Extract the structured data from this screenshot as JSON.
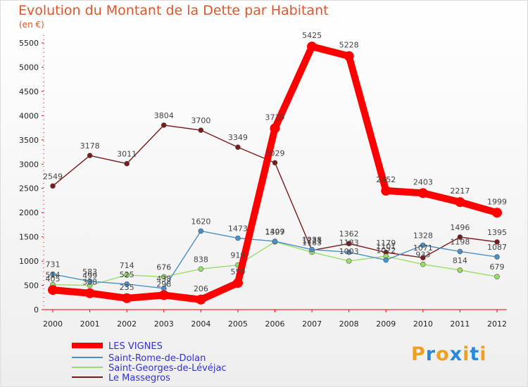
{
  "chart_data": {
    "type": "line",
    "title": "Evolution du Montant de la Dette par Habitant",
    "subtitle": "(en €)",
    "xlabel": "",
    "ylabel": "",
    "x": [
      "2000",
      "2001",
      "2002",
      "2003",
      "2004",
      "2005",
      "2006",
      "2007",
      "2008",
      "2009",
      "2010",
      "2011",
      "2012"
    ],
    "ylim": [
      0,
      5500
    ],
    "yticks": [
      0,
      500,
      1000,
      1500,
      2000,
      2500,
      3000,
      3500,
      4000,
      4500,
      5000,
      5500
    ],
    "grid": false,
    "legend_position": "bottom-left",
    "series": [
      {
        "name": "LES VIGNES",
        "color": "#ff0000",
        "values": [
          405,
          338,
          235,
          298,
          206,
          550,
          3739,
          5425,
          5228,
          2452,
          2403,
          2217,
          1999
        ]
      },
      {
        "name": "Saint-Rome-de-Dolan",
        "color": "#4a90c8",
        "values": [
          731,
          583,
          525,
          438,
          1620,
          1473,
          1409,
          1238,
          1183,
          1022,
          1328,
          1198,
          1087
        ]
      },
      {
        "name": "Saint-Georges-de-Lévéjac",
        "color": "#99dd66",
        "values": [
          514,
          499,
          714,
          676,
          838,
          919,
          1397,
          1183,
          1003,
          1101,
          933,
          814,
          679
        ]
      },
      {
        "name": "Le Massegros",
        "color": "#7a1a1a",
        "values": [
          2549,
          3178,
          3011,
          3804,
          3700,
          3349,
          3029,
          1221,
          1362,
          1179,
          1071,
          1496,
          1395
        ]
      }
    ]
  },
  "logo": {
    "text": "Proxiti",
    "colors": [
      "#f0a020",
      "#2a8ad8",
      "#f0a020",
      "#2a8ad8",
      "#f0a020",
      "#2a8ad8",
      "#f0a020"
    ]
  }
}
